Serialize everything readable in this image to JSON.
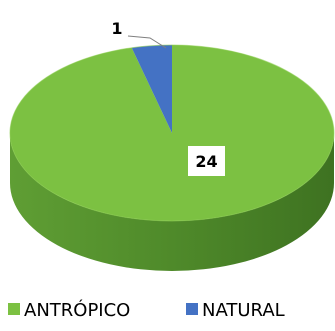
{
  "chart_data": {
    "type": "pie",
    "style": "3d",
    "title": "",
    "slices": [
      {
        "name": "ANTRÓPICO",
        "value": 24,
        "label": "24",
        "color": "#7cc142",
        "side_color": "#4f8a2a"
      },
      {
        "name": "NATURAL",
        "value": 1,
        "label": "1",
        "color": "#4472c4",
        "side_color": "#2f528f"
      }
    ],
    "legend": {
      "placement": "bottom",
      "entries": [
        "ANTRÓPICO",
        "NATURAL"
      ]
    }
  }
}
